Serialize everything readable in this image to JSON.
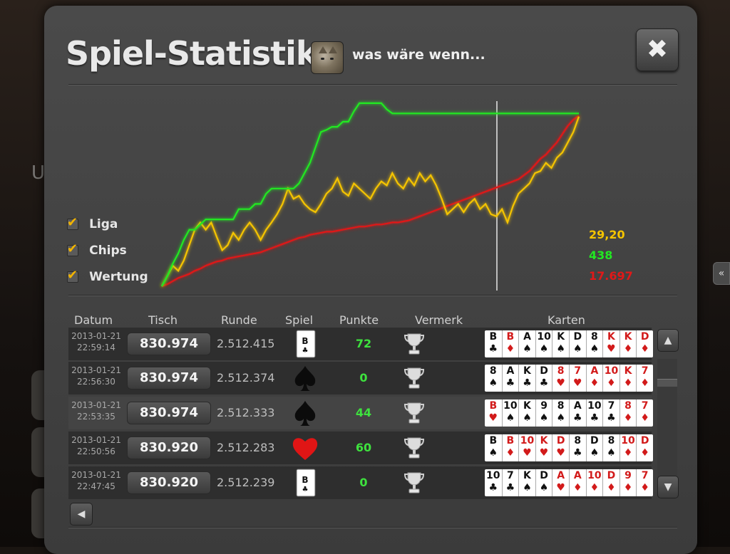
{
  "header": {
    "title": "Spiel-Statistik",
    "subtitle": "was wäre wenn...",
    "close_label": "✖"
  },
  "legend": [
    {
      "label": "Liga",
      "checked": true,
      "color": "#f5c400"
    },
    {
      "label": "Chips",
      "checked": true,
      "color": "#22e822"
    },
    {
      "label": "Wertung",
      "checked": true,
      "color": "#e11818"
    }
  ],
  "values": [
    {
      "text": "29,20",
      "color": "#f5c400"
    },
    {
      "text": "438",
      "color": "#22e822"
    },
    {
      "text": "17.697",
      "color": "#e11818"
    }
  ],
  "chart_data": {
    "type": "line",
    "series": [
      {
        "name": "Liga",
        "color": "#f5c400",
        "values": [
          0,
          10,
          20,
          15,
          25,
          40,
          55,
          62,
          55,
          62,
          48,
          35,
          40,
          52,
          45,
          55,
          62,
          55,
          45,
          55,
          62,
          70,
          80,
          95,
          85,
          88,
          80,
          75,
          72,
          80,
          90,
          95,
          105,
          92,
          88,
          100,
          95,
          90,
          85,
          95,
          102,
          98,
          110,
          100,
          95,
          105,
          98,
          110,
          102,
          108,
          98,
          85,
          70,
          75,
          80,
          72,
          80,
          85,
          75,
          80,
          70,
          68,
          75,
          62,
          78,
          90,
          95,
          100,
          110,
          112,
          120,
          115,
          125,
          130,
          140,
          150,
          165
        ]
      },
      {
        "name": "Chips",
        "color": "#22e822",
        "values": [
          0,
          10,
          22,
          32,
          45,
          55,
          55,
          60,
          65,
          65,
          65,
          65,
          65,
          65,
          75,
          75,
          75,
          80,
          80,
          90,
          95,
          95,
          95,
          95,
          95,
          100,
          110,
          120,
          135,
          150,
          152,
          155,
          155,
          160,
          160,
          170,
          178,
          178,
          178,
          178,
          178,
          172,
          168,
          168,
          168,
          168,
          168,
          168,
          168,
          168,
          168,
          168,
          168,
          168,
          168,
          168,
          168,
          168,
          168,
          168,
          168,
          168,
          168,
          168,
          168,
          168,
          168,
          168,
          168,
          168,
          168,
          168,
          168,
          168,
          168,
          168,
          168
        ]
      },
      {
        "name": "Wertung",
        "color": "#e11818",
        "values": [
          0,
          2,
          5,
          8,
          10,
          12,
          15,
          17,
          20,
          22,
          24,
          25,
          27,
          28,
          29,
          30,
          31,
          32,
          33,
          35,
          37,
          39,
          41,
          43,
          45,
          47,
          48,
          50,
          51,
          52,
          53,
          53,
          54,
          55,
          56,
          57,
          58,
          58,
          59,
          60,
          60,
          61,
          62,
          62,
          63,
          64,
          66,
          68,
          70,
          72,
          74,
          76,
          78,
          80,
          82,
          84,
          86,
          88,
          90,
          92,
          94,
          96,
          98,
          100,
          102,
          104,
          108,
          112,
          118,
          124,
          128,
          134,
          140,
          148,
          156,
          162,
          166
        ]
      }
    ],
    "marker_line": true,
    "grid": false
  },
  "table": {
    "headers": {
      "datum": "Datum",
      "tisch": "Tisch",
      "runde": "Runde",
      "spiel": "Spiel",
      "punkte": "Punkte",
      "vermerk": "Vermerk",
      "karten": "Karten"
    },
    "rows": [
      {
        "date": "2013-01-21",
        "time": "22:59:14",
        "tisch": "830.974",
        "runde": "2.512.415",
        "spiel": "bube-kreuz",
        "punkte": "72",
        "vermerk": "trophy",
        "cards": [
          [
            "B",
            "♣",
            "black"
          ],
          [
            "B",
            "♦",
            "red"
          ],
          [
            "A",
            "♠",
            "black"
          ],
          [
            "10",
            "♠",
            "black"
          ],
          [
            "K",
            "♠",
            "black"
          ],
          [
            "D",
            "♠",
            "black"
          ],
          [
            "8",
            "♠",
            "black"
          ],
          [
            "K",
            "♥",
            "red"
          ],
          [
            "K",
            "♦",
            "red"
          ],
          [
            "D",
            "♦",
            "red"
          ]
        ]
      },
      {
        "date": "2013-01-21",
        "time": "22:56:30",
        "tisch": "830.974",
        "runde": "2.512.374",
        "spiel": "pik",
        "punkte": "0",
        "vermerk": "trophy",
        "cards": [
          [
            "8",
            "♠",
            "black"
          ],
          [
            "A",
            "♣",
            "black"
          ],
          [
            "K",
            "♣",
            "black"
          ],
          [
            "D",
            "♣",
            "black"
          ],
          [
            "8",
            "♥",
            "red"
          ],
          [
            "7",
            "♥",
            "red"
          ],
          [
            "A",
            "♦",
            "red"
          ],
          [
            "10",
            "♦",
            "red"
          ],
          [
            "K",
            "♦",
            "red"
          ],
          [
            "7",
            "♦",
            "red"
          ]
        ]
      },
      {
        "date": "2013-01-21",
        "time": "22:53:35",
        "tisch": "830.974",
        "runde": "2.512.333",
        "spiel": "pik",
        "punkte": "44",
        "vermerk": "trophy",
        "cards": [
          [
            "B",
            "♥",
            "red"
          ],
          [
            "10",
            "♠",
            "black"
          ],
          [
            "K",
            "♠",
            "black"
          ],
          [
            "9",
            "♠",
            "black"
          ],
          [
            "8",
            "♠",
            "black"
          ],
          [
            "A",
            "♣",
            "black"
          ],
          [
            "10",
            "♣",
            "black"
          ],
          [
            "7",
            "♣",
            "black"
          ],
          [
            "8",
            "♦",
            "red"
          ],
          [
            "7",
            "♦",
            "red"
          ]
        ]
      },
      {
        "date": "2013-01-21",
        "time": "22:50:56",
        "tisch": "830.920",
        "runde": "2.512.283",
        "spiel": "herz",
        "punkte": "60",
        "vermerk": "trophy",
        "cards": [
          [
            "B",
            "♠",
            "black"
          ],
          [
            "B",
            "♦",
            "red"
          ],
          [
            "10",
            "♥",
            "red"
          ],
          [
            "K",
            "♥",
            "red"
          ],
          [
            "D",
            "♥",
            "red"
          ],
          [
            "8",
            "♣",
            "black"
          ],
          [
            "D",
            "♠",
            "black"
          ],
          [
            "8",
            "♠",
            "black"
          ],
          [
            "10",
            "♦",
            "red"
          ],
          [
            "D",
            "♦",
            "red"
          ]
        ]
      },
      {
        "date": "2013-01-21",
        "time": "22:47:45",
        "tisch": "830.920",
        "runde": "2.512.239",
        "spiel": "bube-kreuz",
        "punkte": "0",
        "vermerk": "trophy",
        "cards": [
          [
            "10",
            "♣",
            "black"
          ],
          [
            "7",
            "♣",
            "black"
          ],
          [
            "K",
            "♠",
            "black"
          ],
          [
            "D",
            "♠",
            "black"
          ],
          [
            "A",
            "♥",
            "red"
          ],
          [
            "A",
            "♦",
            "red"
          ],
          [
            "10",
            "♦",
            "red"
          ],
          [
            "D",
            "♦",
            "red"
          ],
          [
            "9",
            "♦",
            "red"
          ],
          [
            "7",
            "♦",
            "red"
          ]
        ]
      }
    ]
  },
  "spiel_card_label": "B",
  "edge_tab_label": "«",
  "bg_glyph": "U"
}
